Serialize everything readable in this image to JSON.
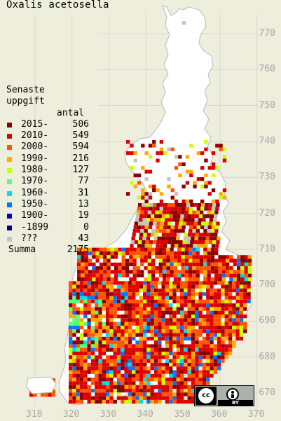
{
  "title": "Oxalis acetosella",
  "legend": {
    "heading_line1": "Senaste",
    "heading_line2": "uppgift",
    "count_header": "antal",
    "rows": [
      {
        "label": "2015-",
        "count": "506",
        "color": "#880000"
      },
      {
        "label": "2010-",
        "count": "549",
        "color": "#dd0000"
      },
      {
        "label": "2000-",
        "count": "594",
        "color": "#ff5500"
      },
      {
        "label": "1990-",
        "count": "216",
        "color": "#ffaa00"
      },
      {
        "label": "1980-",
        "count": "127",
        "color": "#ccff00"
      },
      {
        "label": "1970-",
        "count": "77",
        "color": "#55ff77"
      },
      {
        "label": "1960-",
        "count": "31",
        "color": "#00ddee"
      },
      {
        "label": "1950-",
        "count": "13",
        "color": "#0077ff"
      },
      {
        "label": "1900-",
        "count": "19",
        "color": "#0000dd"
      },
      {
        "label": "-1899",
        "count": "0",
        "color": "#000088"
      },
      {
        "label": "???",
        "count": "43",
        "color": "#c4c4c4"
      }
    ],
    "sum_label": "Summa",
    "sum_value": "2175"
  },
  "y_ticks": [
    "770",
    "760",
    "750",
    "740",
    "730",
    "720",
    "710",
    "700",
    "690",
    "680",
    "670"
  ],
  "x_ticks": [
    "310",
    "320",
    "330",
    "340",
    "350",
    "360",
    "370"
  ],
  "license_badge": {
    "left_text": "cc",
    "right_text": "BY"
  },
  "colors": {
    "background": "#eeeedd",
    "land": "#ffffff",
    "grid": "#c8c8c8",
    "tick_text": "#a6a6a6"
  }
}
